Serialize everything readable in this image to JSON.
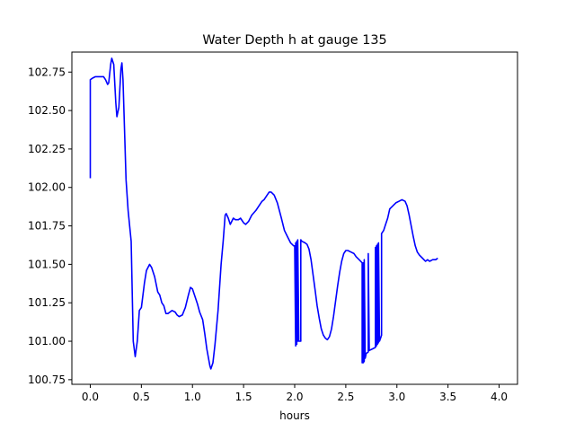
{
  "chart_data": {
    "type": "line",
    "title": "Water Depth h at gauge 135",
    "xlabel": "hours",
    "ylabel": "",
    "xlim": [
      -0.18,
      4.18
    ],
    "ylim": [
      100.72,
      102.88
    ],
    "xticks": [
      0.0,
      0.5,
      1.0,
      1.5,
      2.0,
      2.5,
      3.0,
      3.5,
      4.0
    ],
    "xtick_labels": [
      "0.0",
      "0.5",
      "1.0",
      "1.5",
      "2.0",
      "2.5",
      "3.0",
      "3.5",
      "4.0"
    ],
    "yticks": [
      100.75,
      101.0,
      101.25,
      101.5,
      101.75,
      102.0,
      102.25,
      102.5,
      102.75
    ],
    "ytick_labels": [
      "100.75",
      "101.00",
      "101.25",
      "101.50",
      "101.75",
      "102.00",
      "102.25",
      "102.50",
      "102.75"
    ],
    "grid": false,
    "legend": "none",
    "series": [
      {
        "color": "#0000ff",
        "points": [
          [
            0.0,
            102.06
          ],
          [
            0.0,
            102.7
          ],
          [
            0.02,
            102.71
          ],
          [
            0.05,
            102.72
          ],
          [
            0.1,
            102.72
          ],
          [
            0.13,
            102.72
          ],
          [
            0.15,
            102.7
          ],
          [
            0.17,
            102.67
          ],
          [
            0.18,
            102.68
          ],
          [
            0.2,
            102.8
          ],
          [
            0.21,
            102.84
          ],
          [
            0.23,
            102.8
          ],
          [
            0.25,
            102.55
          ],
          [
            0.26,
            102.46
          ],
          [
            0.28,
            102.52
          ],
          [
            0.3,
            102.77
          ],
          [
            0.31,
            102.81
          ],
          [
            0.32,
            102.7
          ],
          [
            0.35,
            102.05
          ],
          [
            0.37,
            101.85
          ],
          [
            0.4,
            101.65
          ],
          [
            0.42,
            101.0
          ],
          [
            0.44,
            100.9
          ],
          [
            0.46,
            101.0
          ],
          [
            0.48,
            101.2
          ],
          [
            0.5,
            101.22
          ],
          [
            0.53,
            101.38
          ],
          [
            0.55,
            101.46
          ],
          [
            0.58,
            101.5
          ],
          [
            0.6,
            101.48
          ],
          [
            0.63,
            101.42
          ],
          [
            0.66,
            101.32
          ],
          [
            0.68,
            101.3
          ],
          [
            0.7,
            101.25
          ],
          [
            0.72,
            101.23
          ],
          [
            0.74,
            101.18
          ],
          [
            0.76,
            101.18
          ],
          [
            0.78,
            101.19
          ],
          [
            0.8,
            101.2
          ],
          [
            0.83,
            101.19
          ],
          [
            0.85,
            101.17
          ],
          [
            0.87,
            101.16
          ],
          [
            0.9,
            101.17
          ],
          [
            0.93,
            101.22
          ],
          [
            0.96,
            101.3
          ],
          [
            0.98,
            101.35
          ],
          [
            1.0,
            101.34
          ],
          [
            1.02,
            101.3
          ],
          [
            1.05,
            101.24
          ],
          [
            1.07,
            101.19
          ],
          [
            1.1,
            101.14
          ],
          [
            1.12,
            101.05
          ],
          [
            1.14,
            100.95
          ],
          [
            1.17,
            100.84
          ],
          [
            1.18,
            100.82
          ],
          [
            1.2,
            100.86
          ],
          [
            1.22,
            100.98
          ],
          [
            1.25,
            101.2
          ],
          [
            1.28,
            101.5
          ],
          [
            1.3,
            101.65
          ],
          [
            1.32,
            101.82
          ],
          [
            1.33,
            101.83
          ],
          [
            1.35,
            101.8
          ],
          [
            1.37,
            101.76
          ],
          [
            1.4,
            101.8
          ],
          [
            1.42,
            101.79
          ],
          [
            1.45,
            101.79
          ],
          [
            1.47,
            101.8
          ],
          [
            1.5,
            101.77
          ],
          [
            1.52,
            101.76
          ],
          [
            1.55,
            101.78
          ],
          [
            1.58,
            101.82
          ],
          [
            1.62,
            101.85
          ],
          [
            1.65,
            101.88
          ],
          [
            1.68,
            101.91
          ],
          [
            1.7,
            101.92
          ],
          [
            1.73,
            101.95
          ],
          [
            1.75,
            101.97
          ],
          [
            1.77,
            101.97
          ],
          [
            1.8,
            101.95
          ],
          [
            1.83,
            101.9
          ],
          [
            1.87,
            101.8
          ],
          [
            1.9,
            101.72
          ],
          [
            1.93,
            101.68
          ],
          [
            1.96,
            101.64
          ],
          [
            1.99,
            101.62
          ],
          [
            2.0,
            101.62
          ],
          [
            2.01,
            100.97
          ],
          [
            2.01,
            101.64
          ],
          [
            2.02,
            100.98
          ],
          [
            2.02,
            101.65
          ],
          [
            2.03,
            101.0
          ],
          [
            2.03,
            101.66
          ],
          [
            2.04,
            101.0
          ],
          [
            2.06,
            101.0
          ],
          [
            2.06,
            101.66
          ],
          [
            2.07,
            101.65
          ],
          [
            2.1,
            101.64
          ],
          [
            2.12,
            101.63
          ],
          [
            2.14,
            101.6
          ],
          [
            2.16,
            101.53
          ],
          [
            2.18,
            101.43
          ],
          [
            2.2,
            101.33
          ],
          [
            2.22,
            101.23
          ],
          [
            2.24,
            101.15
          ],
          [
            2.26,
            101.08
          ],
          [
            2.28,
            101.04
          ],
          [
            2.3,
            101.02
          ],
          [
            2.32,
            101.01
          ],
          [
            2.34,
            101.03
          ],
          [
            2.36,
            101.08
          ],
          [
            2.38,
            101.16
          ],
          [
            2.4,
            101.26
          ],
          [
            2.42,
            101.36
          ],
          [
            2.44,
            101.45
          ],
          [
            2.46,
            101.52
          ],
          [
            2.48,
            101.57
          ],
          [
            2.5,
            101.59
          ],
          [
            2.52,
            101.59
          ],
          [
            2.55,
            101.58
          ],
          [
            2.58,
            101.57
          ],
          [
            2.6,
            101.55
          ],
          [
            2.63,
            101.53
          ],
          [
            2.66,
            101.51
          ],
          [
            2.66,
            100.86
          ],
          [
            2.67,
            101.51
          ],
          [
            2.67,
            100.86
          ],
          [
            2.68,
            100.87
          ],
          [
            2.68,
            101.53
          ],
          [
            2.69,
            100.89
          ],
          [
            2.7,
            100.92
          ],
          [
            2.72,
            100.93
          ],
          [
            2.72,
            101.57
          ],
          [
            2.73,
            100.94
          ],
          [
            2.76,
            100.95
          ],
          [
            2.79,
            100.96
          ],
          [
            2.79,
            101.61
          ],
          [
            2.8,
            100.97
          ],
          [
            2.8,
            101.62
          ],
          [
            2.81,
            100.98
          ],
          [
            2.81,
            101.63
          ],
          [
            2.82,
            100.99
          ],
          [
            2.82,
            101.64
          ],
          [
            2.83,
            101.0
          ],
          [
            2.84,
            101.02
          ],
          [
            2.85,
            101.04
          ],
          [
            2.85,
            101.7
          ],
          [
            2.87,
            101.72
          ],
          [
            2.89,
            101.76
          ],
          [
            2.91,
            101.8
          ],
          [
            2.93,
            101.86
          ],
          [
            2.96,
            101.88
          ],
          [
            2.99,
            101.9
          ],
          [
            3.02,
            101.91
          ],
          [
            3.05,
            101.92
          ],
          [
            3.08,
            101.91
          ],
          [
            3.1,
            101.88
          ],
          [
            3.12,
            101.82
          ],
          [
            3.14,
            101.75
          ],
          [
            3.16,
            101.68
          ],
          [
            3.18,
            101.62
          ],
          [
            3.2,
            101.58
          ],
          [
            3.22,
            101.56
          ],
          [
            3.25,
            101.54
          ],
          [
            3.28,
            101.52
          ],
          [
            3.3,
            101.53
          ],
          [
            3.32,
            101.52
          ],
          [
            3.35,
            101.53
          ],
          [
            3.38,
            101.53
          ],
          [
            3.4,
            101.54
          ]
        ]
      }
    ]
  }
}
